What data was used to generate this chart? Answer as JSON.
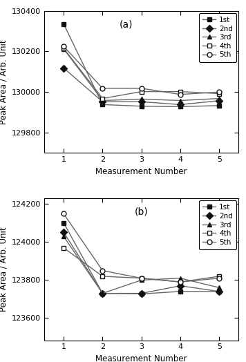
{
  "panel_a": {
    "title": "(a)",
    "ylabel": "Peak Area / Arb. Unit",
    "xlabel": "Measurement Number",
    "ylim": [
      129700,
      130400
    ],
    "yticks": [
      129800,
      130000,
      130200,
      130400
    ],
    "xlim": [
      0.5,
      5.5
    ],
    "xticks": [
      1,
      2,
      3,
      4,
      5
    ],
    "series": [
      {
        "label": "1st",
        "marker": "s",
        "filled": true,
        "data": [
          130335,
          129938,
          129930,
          129928,
          129933
        ]
      },
      {
        "label": "2nd",
        "marker": "D",
        "filled": true,
        "data": [
          130118,
          129952,
          129952,
          129938,
          129957
        ]
      },
      {
        "label": "3rd",
        "marker": "^",
        "filled": true,
        "data": [
          130212,
          129958,
          129965,
          129958,
          129968
        ]
      },
      {
        "label": "4th",
        "marker": "s",
        "filled": false,
        "data": [
          130215,
          129968,
          130002,
          130002,
          129992
        ]
      },
      {
        "label": "5th",
        "marker": "o",
        "filled": false,
        "data": [
          130225,
          130018,
          130018,
          129988,
          130000
        ]
      }
    ]
  },
  "panel_b": {
    "title": "(b)",
    "ylabel": "Peak Area / Arb. Unit",
    "xlabel": "Measurement Number",
    "ylim": [
      123480,
      124230
    ],
    "yticks": [
      123600,
      123800,
      124000,
      124200
    ],
    "xlim": [
      0.5,
      5.5
    ],
    "xticks": [
      1,
      2,
      3,
      4,
      5
    ],
    "series": [
      {
        "label": "1st",
        "marker": "s",
        "filled": true,
        "data": [
          124100,
          123728,
          123725,
          123738,
          123738
        ]
      },
      {
        "label": "2nd",
        "marker": "D",
        "filled": true,
        "data": [
          124050,
          123728,
          123728,
          123768,
          123738
        ]
      },
      {
        "label": "3rd",
        "marker": "^",
        "filled": true,
        "data": [
          124028,
          123728,
          123798,
          123808,
          123758
        ]
      },
      {
        "label": "4th",
        "marker": "s",
        "filled": false,
        "data": [
          123968,
          123818,
          123808,
          123788,
          123818
        ]
      },
      {
        "label": "5th",
        "marker": "o",
        "filled": false,
        "data": [
          124148,
          123848,
          123808,
          123788,
          123808
        ]
      }
    ]
  },
  "line_color": "#666666",
  "fill_color": "#111111",
  "open_facecolor": "white",
  "markersize": 5,
  "linewidth": 1.0,
  "legend_fontsize": 7.5,
  "axis_fontsize": 8.5,
  "tick_fontsize": 8,
  "title_fontsize": 10
}
